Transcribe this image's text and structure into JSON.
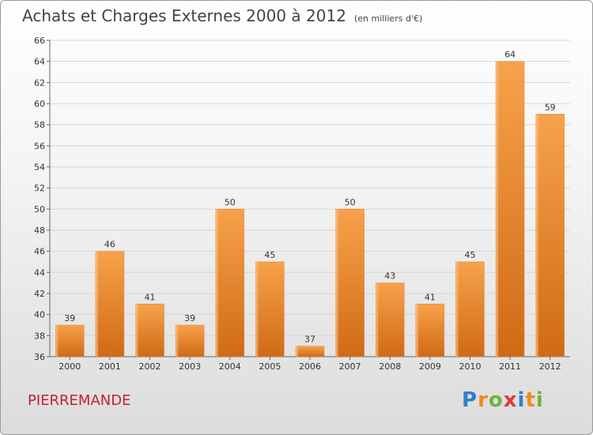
{
  "header": {
    "title": "Achats et Charges Externes 2000 à 2012",
    "unit": "(en milliers d'€)"
  },
  "footer": {
    "commune": "PIERREMANDE",
    "logo": "Proxiti"
  },
  "colors": {
    "bar_light": "#f7a24c",
    "bar_dark": "#d06a15",
    "commune_text": "#c41e3a"
  },
  "chart_data": {
    "type": "bar",
    "title": "Achats et Charges Externes 2000 à 2012",
    "subtitle": "(en milliers d'€)",
    "xlabel": "",
    "ylabel": "",
    "categories": [
      "2000",
      "2001",
      "2002",
      "2003",
      "2004",
      "2005",
      "2006",
      "2007",
      "2008",
      "2009",
      "2010",
      "2011",
      "2012"
    ],
    "values": [
      39,
      46,
      41,
      39,
      50,
      45,
      37,
      50,
      43,
      41,
      45,
      64,
      59
    ],
    "ylim": [
      36,
      66
    ],
    "yticks": [
      36,
      38,
      40,
      42,
      44,
      46,
      48,
      50,
      52,
      54,
      56,
      58,
      60,
      62,
      64,
      66
    ],
    "grid": true,
    "data_labels": true
  }
}
